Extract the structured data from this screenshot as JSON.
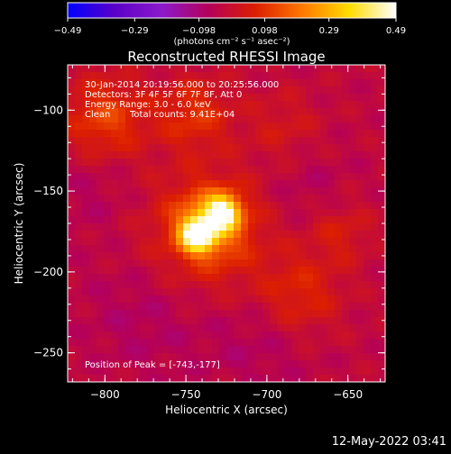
{
  "chart_data": {
    "type": "heatmap",
    "title": "Reconstructed RHESSI Image",
    "xlabel": "Heliocentric X (arcsec)",
    "ylabel": "Heliocentric Y (arcsec)",
    "xlim": [
      -823,
      -627
    ],
    "ylim": [
      -268,
      -72
    ],
    "x_ticks": [
      {
        "value": -800,
        "label": "−800"
      },
      {
        "value": -750,
        "label": "−750"
      },
      {
        "value": -700,
        "label": "−700"
      },
      {
        "value": -650,
        "label": "−650"
      }
    ],
    "y_ticks": [
      {
        "value": -100,
        "label": "−100"
      },
      {
        "value": -150,
        "label": "−150"
      },
      {
        "value": -200,
        "label": "−200"
      },
      {
        "value": -250,
        "label": "−250"
      }
    ],
    "colorbar": {
      "range": [
        -0.49,
        0.49
      ],
      "ticks": [
        {
          "value": -0.49,
          "label": "−0.49"
        },
        {
          "value": -0.29,
          "label": "−0.29"
        },
        {
          "value": -0.098,
          "label": "−0.098"
        },
        {
          "value": 0.098,
          "label": "0.098"
        },
        {
          "value": 0.29,
          "label": "0.29"
        },
        {
          "value": 0.49,
          "label": "0.49"
        }
      ],
      "label": "(photons cm⁻² s⁻¹ asec⁻²)",
      "colors": [
        "#0000ff",
        "#5a00c8",
        "#8c1acc",
        "#b4005a",
        "#dc1e00",
        "#ff7800",
        "#ffdc00",
        "#ffffff"
      ]
    },
    "peak": {
      "x": -743,
      "y": -177,
      "value": 0.49
    },
    "sources": [
      {
        "x": -743,
        "y": -177,
        "amplitude": 0.42,
        "sigma": 7
      },
      {
        "x": -727,
        "y": -163,
        "amplitude": 0.36,
        "sigma": 7
      },
      {
        "x": -735,
        "y": -170,
        "amplitude": 0.22,
        "sigma": 14
      },
      {
        "x": -740,
        "y": -180,
        "amplitude": 0.12,
        "sigma": 30
      },
      {
        "x": -800,
        "y": -105,
        "amplitude": 0.15,
        "sigma": 18
      },
      {
        "x": -745,
        "y": -102,
        "amplitude": 0.12,
        "sigma": 16
      },
      {
        "x": -680,
        "y": -215,
        "amplitude": 0.11,
        "sigma": 18
      },
      {
        "x": -655,
        "y": -175,
        "amplitude": 0.08,
        "sigma": 14
      },
      {
        "x": -690,
        "y": -110,
        "amplitude": 0.06,
        "sigma": 16
      },
      {
        "x": -772,
        "y": -222,
        "amplitude": -0.06,
        "sigma": 28
      },
      {
        "x": -705,
        "y": -240,
        "amplitude": -0.05,
        "sigma": 24
      },
      {
        "x": -805,
        "y": -150,
        "amplitude": -0.04,
        "sigma": 20
      },
      {
        "x": -675,
        "y": -150,
        "amplitude": -0.04,
        "sigma": 18
      }
    ],
    "annotations": {
      "time_range": "30-Jan-2014 20:19:56.000 to 20:25:56.000",
      "detectors": "Detectors: 3F 4F 5F 6F 7F 8F, Att 0",
      "energy_range": "Energy Range: 3.0 - 6.0 keV",
      "algorithm": "Clean",
      "total_counts": "Total counts: 9.41E+04",
      "peak_position": "Position of Peak = [-743,-177]"
    }
  },
  "footer": {
    "date": "12-May-2022 03:41"
  }
}
